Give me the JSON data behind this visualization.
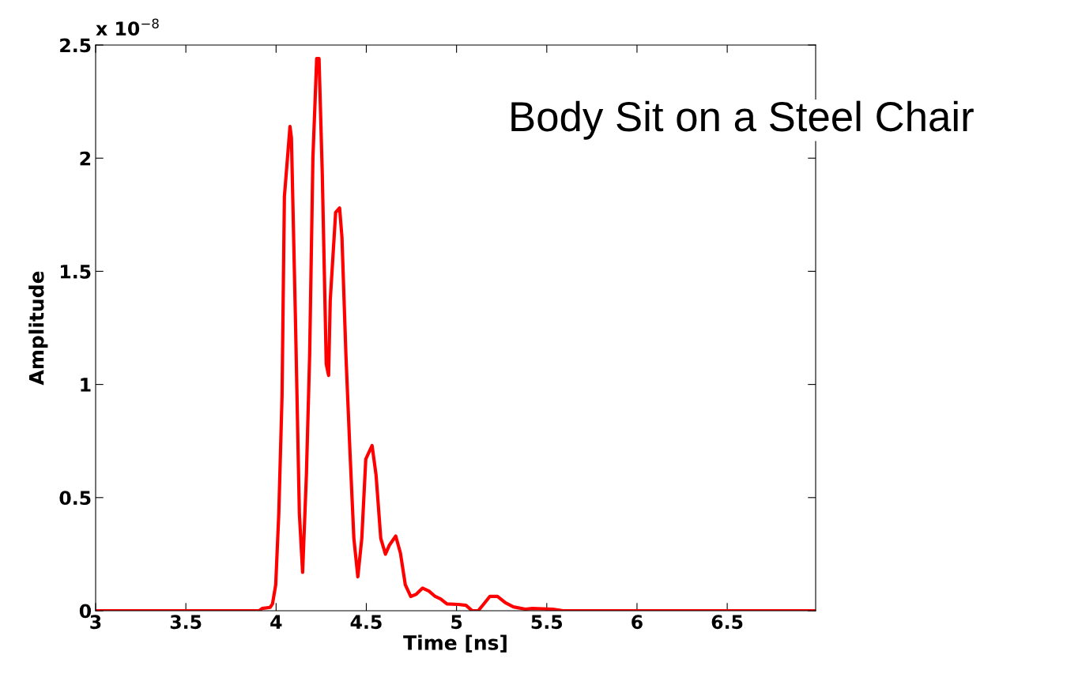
{
  "chart_data": {
    "type": "line",
    "xlabel": "Time [ns]",
    "ylabel": "Amplitude",
    "annotations": [
      "x 10$^{−8}$",
      "Body Sit on a Steel Chair"
    ],
    "xlim": [
      3,
      6.99
    ],
    "xticks": [
      3,
      3.5,
      4,
      4.5,
      5,
      5.5,
      6,
      6.5
    ],
    "ylim": [
      0,
      2.5
    ],
    "yticks": [
      0,
      0.5,
      1,
      1.5,
      2,
      2.5
    ],
    "grid": false,
    "marker": "none",
    "line_style": "solid",
    "series": [
      {
        "color": "#ff0000",
        "x": [
          3,
          3.906,
          3.923,
          3.967,
          3.98,
          3.998,
          4.015,
          4.033,
          4.046,
          4.077,
          4.085,
          4.107,
          4.129,
          4.147,
          4.168,
          4.186,
          4.204,
          4.225,
          4.238,
          4.256,
          4.278,
          4.291,
          4.3,
          4.33,
          4.352,
          4.365,
          4.387,
          4.409,
          4.431,
          4.453,
          4.475,
          4.497,
          4.532,
          4.554,
          4.58,
          4.606,
          4.628,
          4.663,
          4.689,
          4.716,
          4.746,
          4.777,
          4.812,
          4.847,
          4.882,
          4.912,
          4.947,
          5.009,
          5.052,
          5.087,
          5.12,
          5.149,
          5.184,
          5.227,
          5.271,
          5.315,
          5.381,
          5.42,
          5.534,
          5.59,
          6.99
        ],
        "values": [
          0,
          0,
          0.01,
          0.015,
          0.03,
          0.115,
          0.43,
          0.95,
          1.83,
          2.14,
          2.09,
          1.3,
          0.43,
          0.17,
          0.6,
          1.13,
          2.0,
          2.44,
          2.44,
          1.93,
          1.09,
          1.04,
          1.37,
          1.76,
          1.78,
          1.65,
          1.13,
          0.71,
          0.32,
          0.15,
          0.32,
          0.67,
          0.73,
          0.6,
          0.32,
          0.25,
          0.29,
          0.33,
          0.255,
          0.115,
          0.063,
          0.073,
          0.1,
          0.087,
          0.063,
          0.052,
          0.03,
          0.028,
          0.024,
          0,
          0,
          0.028,
          0.063,
          0.063,
          0.035,
          0.017,
          0.007,
          0.01,
          0.007,
          0,
          0
        ]
      }
    ]
  }
}
